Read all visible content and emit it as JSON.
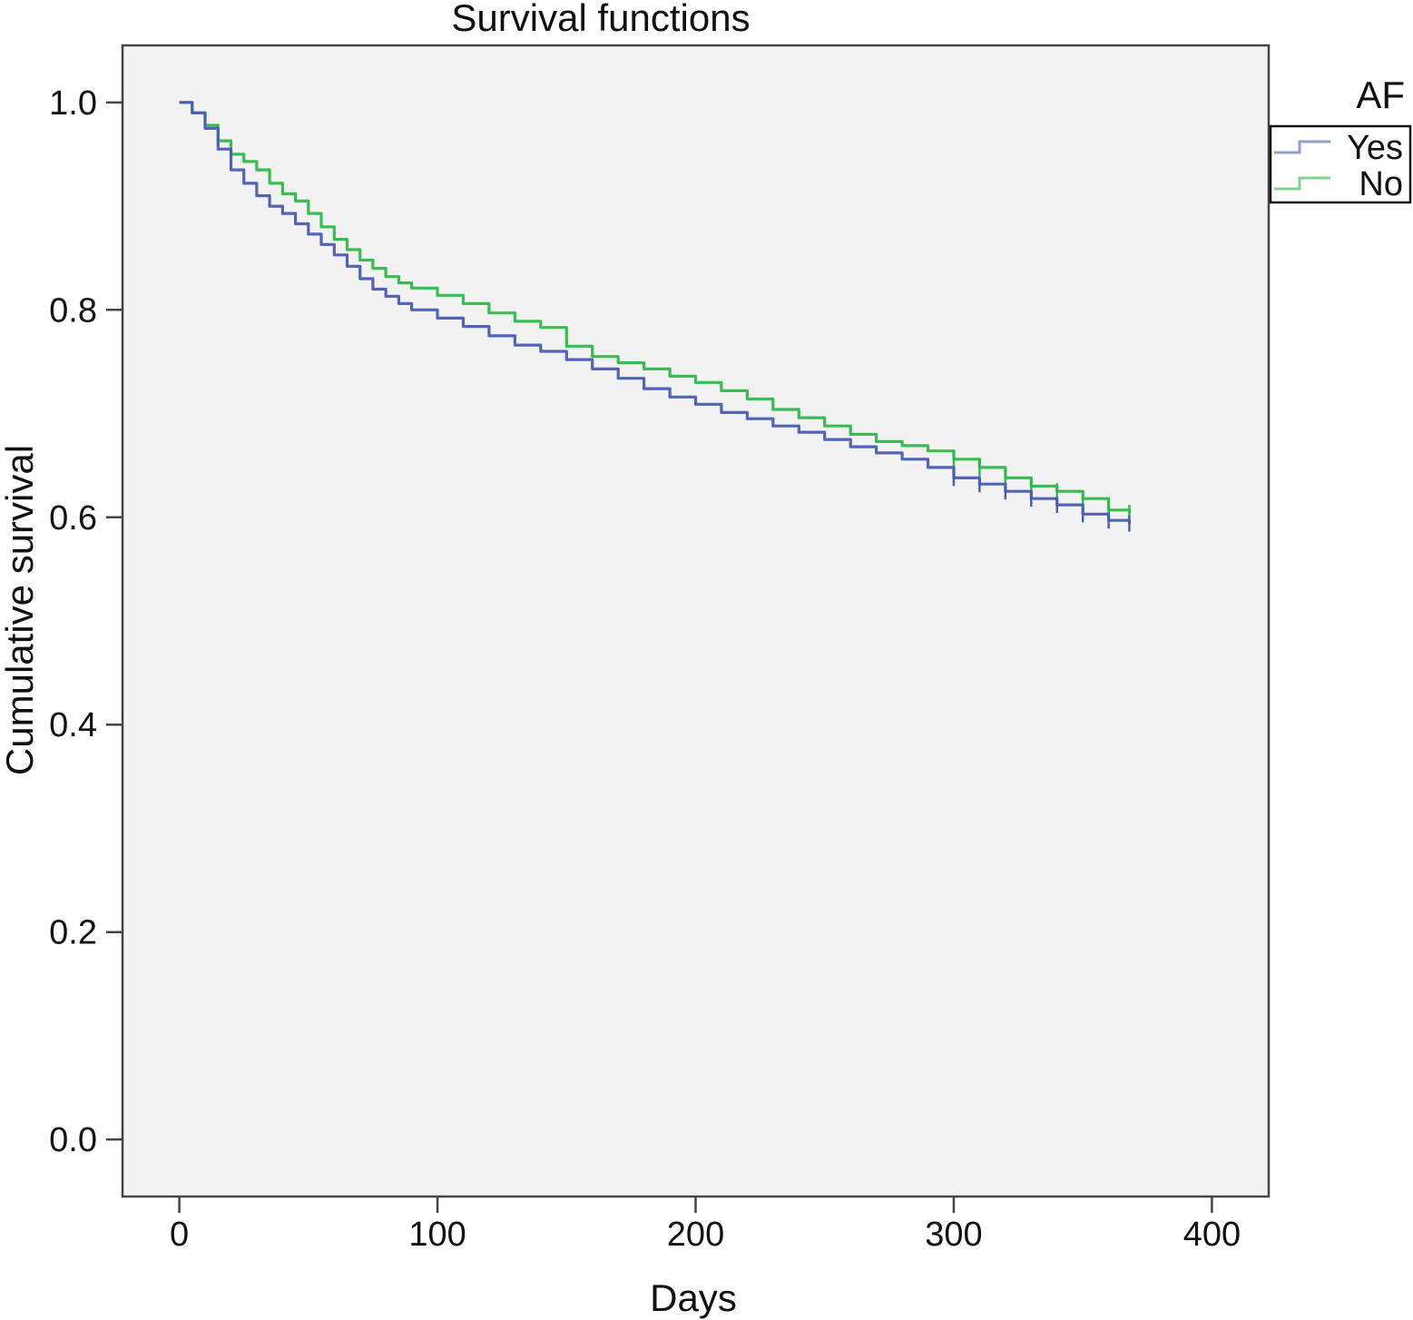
{
  "chart_data": {
    "type": "line",
    "title": "Survival functions",
    "xlabel": "Days",
    "ylabel": "Cumulative survival",
    "xlim": [
      -22,
      422
    ],
    "ylim": [
      -0.055,
      1.055
    ],
    "x_ticks": [
      0,
      100,
      200,
      300,
      400
    ],
    "x_tick_labels": [
      "0",
      "100",
      "200",
      "300",
      "400"
    ],
    "y_ticks": [
      0.0,
      0.2,
      0.4,
      0.6,
      0.8,
      1.0
    ],
    "y_tick_labels": [
      "0.0",
      "0.2",
      "0.4",
      "0.6",
      "0.8",
      "1.0"
    ],
    "grid": false,
    "plot_background": "#f2f2f2",
    "legend": {
      "title": "AF",
      "position": "top-right-outside",
      "entries": [
        {
          "label": "Yes",
          "color": "#4a5cb0"
        },
        {
          "label": "No",
          "color": "#2fb84a"
        }
      ]
    },
    "series": [
      {
        "name": "Yes",
        "color": "#4a5cb0",
        "x": [
          0,
          5,
          10,
          15,
          20,
          25,
          30,
          35,
          40,
          45,
          50,
          55,
          60,
          65,
          70,
          75,
          80,
          85,
          90,
          100,
          110,
          120,
          130,
          140,
          150,
          160,
          170,
          180,
          190,
          200,
          210,
          220,
          230,
          240,
          250,
          260,
          270,
          280,
          290,
          300,
          310,
          320,
          330,
          340,
          350,
          360,
          368
        ],
        "y": [
          1.0,
          0.99,
          0.975,
          0.955,
          0.935,
          0.922,
          0.91,
          0.9,
          0.893,
          0.883,
          0.873,
          0.863,
          0.853,
          0.842,
          0.83,
          0.82,
          0.813,
          0.806,
          0.8,
          0.792,
          0.784,
          0.775,
          0.766,
          0.76,
          0.752,
          0.743,
          0.734,
          0.724,
          0.716,
          0.709,
          0.701,
          0.695,
          0.688,
          0.682,
          0.675,
          0.668,
          0.662,
          0.656,
          0.648,
          0.638,
          0.632,
          0.625,
          0.618,
          0.612,
          0.603,
          0.597,
          0.594
        ]
      },
      {
        "name": "No",
        "color": "#2fb84a",
        "x": [
          0,
          5,
          10,
          15,
          20,
          25,
          30,
          35,
          40,
          45,
          50,
          55,
          60,
          65,
          70,
          75,
          80,
          85,
          90,
          100,
          110,
          120,
          130,
          140,
          150,
          160,
          170,
          180,
          190,
          200,
          210,
          220,
          230,
          240,
          250,
          260,
          270,
          280,
          290,
          300,
          310,
          320,
          330,
          340,
          350,
          360,
          368
        ],
        "y": [
          1.0,
          0.99,
          0.978,
          0.963,
          0.95,
          0.943,
          0.935,
          0.922,
          0.912,
          0.905,
          0.893,
          0.88,
          0.868,
          0.858,
          0.848,
          0.84,
          0.832,
          0.826,
          0.821,
          0.814,
          0.806,
          0.797,
          0.789,
          0.783,
          0.765,
          0.755,
          0.749,
          0.743,
          0.736,
          0.73,
          0.722,
          0.714,
          0.704,
          0.696,
          0.688,
          0.68,
          0.673,
          0.669,
          0.664,
          0.656,
          0.648,
          0.638,
          0.63,
          0.625,
          0.618,
          0.607,
          0.604
        ]
      }
    ]
  }
}
